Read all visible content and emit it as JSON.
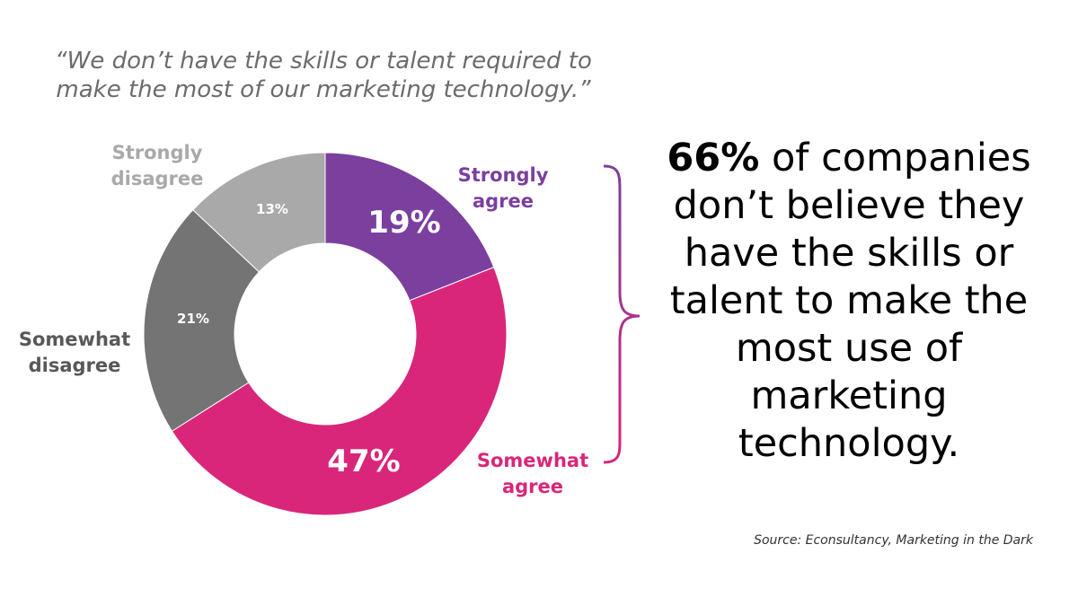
{
  "quote": "“We don’t have the skills or talent required to make the most of our marketing technology.”",
  "chart_data": {
    "type": "pie",
    "variant": "donut",
    "title": "",
    "slices": [
      {
        "label_line1": "Strongly",
        "label_line2": "agree",
        "value": 19,
        "value_label": "19%",
        "color": "#7b3f9e"
      },
      {
        "label_line1": "Somewhat",
        "label_line2": "agree",
        "value": 47,
        "value_label": "47%",
        "color": "#d9267a"
      },
      {
        "label_line1": "Somewhat",
        "label_line2": "disagree",
        "value": 21,
        "value_label": "21%",
        "color": "#747474"
      },
      {
        "label_line1": "Strongly",
        "label_line2": "disagree",
        "value": 13,
        "value_label": "13%",
        "color": "#a9a9a9"
      }
    ]
  },
  "headline": {
    "bold_part": "66%",
    "rest": " of companies don’t believe they have the skills or talent to make the most use of marketing technology."
  },
  "source": "Source: Econsultancy, Marketing in the Dark",
  "colors": {
    "brace_top": "#7b3f9e",
    "brace_bottom": "#d9267a"
  }
}
